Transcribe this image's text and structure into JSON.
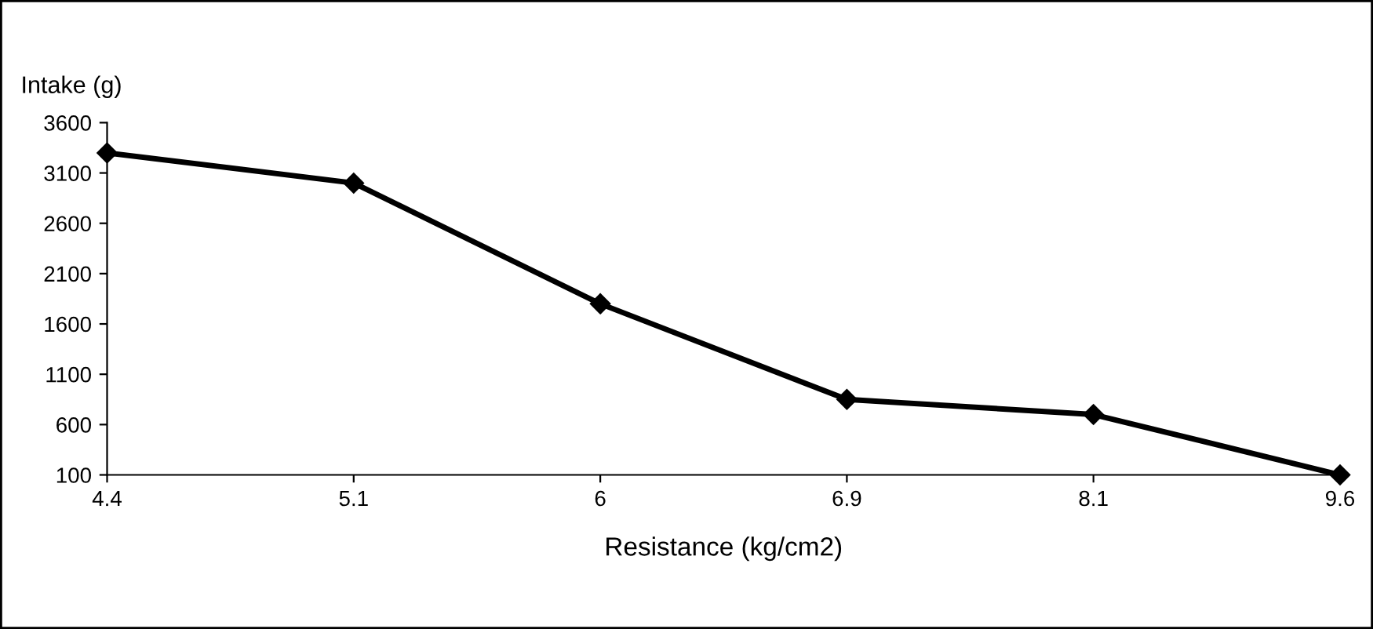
{
  "chart_data": {
    "type": "line",
    "ylabel": "Intake (g)",
    "xlabel": "Resistance (kg/cm2)",
    "categories": [
      "4.4",
      "5.1",
      "6",
      "6.9",
      "8.1",
      "9.6"
    ],
    "series": [
      {
        "color": "#000000",
        "values": [
          3300,
          3000,
          1800,
          850,
          700,
          100
        ]
      }
    ],
    "ylim": [
      100,
      3600
    ],
    "yticks": [
      100,
      600,
      1100,
      1600,
      2100,
      2600,
      3100,
      3600
    ],
    "grid": false,
    "legend": false,
    "marker": "diamond",
    "line_style": "solid"
  }
}
